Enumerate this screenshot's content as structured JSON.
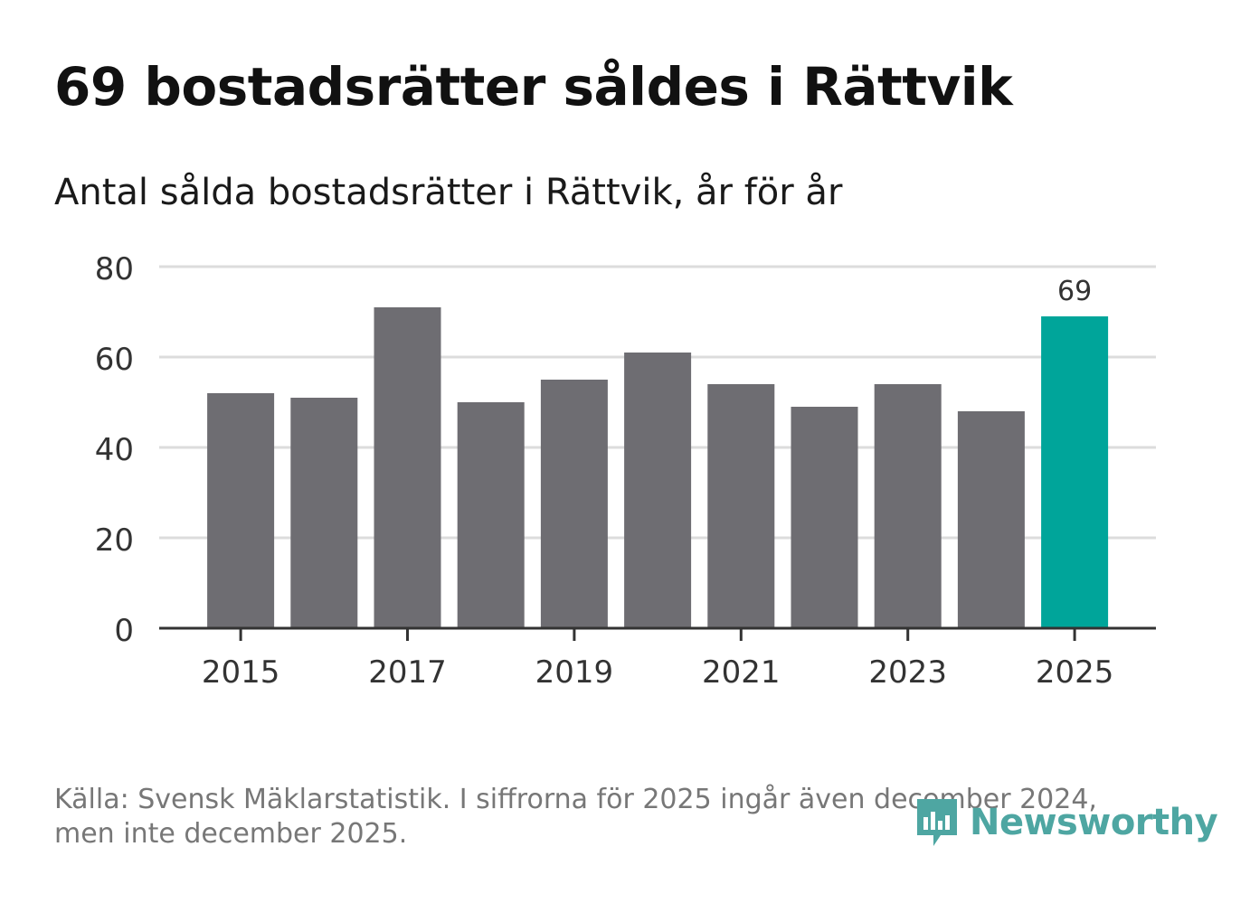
{
  "title": "69 bostadsrätter såldes i Rättvik",
  "subtitle": "Antal sålda bostadsrätter i Rättvik, år för år",
  "source": "Källa: Svensk Mäklarstatistik. I siffrorna för 2025 ingår även december 2024, men inte december 2025.",
  "logo": {
    "text": "Newsworthy",
    "icon": "newsworthy-logo-icon"
  },
  "colors": {
    "bar": "#6e6d72",
    "highlight": "#00a59a",
    "grid": "#dcdcdc",
    "axis": "#333333"
  },
  "chart_data": {
    "type": "bar",
    "title": "Antal sålda bostadsrätter i Rättvik, år för år",
    "xlabel": "",
    "ylabel": "",
    "categories": [
      "2015",
      "2016",
      "2017",
      "2018",
      "2019",
      "2020",
      "2021",
      "2022",
      "2023",
      "2024",
      "2025"
    ],
    "values": [
      52,
      51,
      71,
      50,
      55,
      61,
      54,
      49,
      54,
      48,
      69
    ],
    "x_ticks": [
      "2015",
      "2017",
      "2019",
      "2021",
      "2023",
      "2025"
    ],
    "y_ticks": [
      0,
      20,
      40,
      60,
      80
    ],
    "ylim": [
      0,
      80
    ],
    "grid": true,
    "highlight_category": "2025",
    "data_labels": [
      {
        "category": "2025",
        "text": "69"
      }
    ]
  }
}
